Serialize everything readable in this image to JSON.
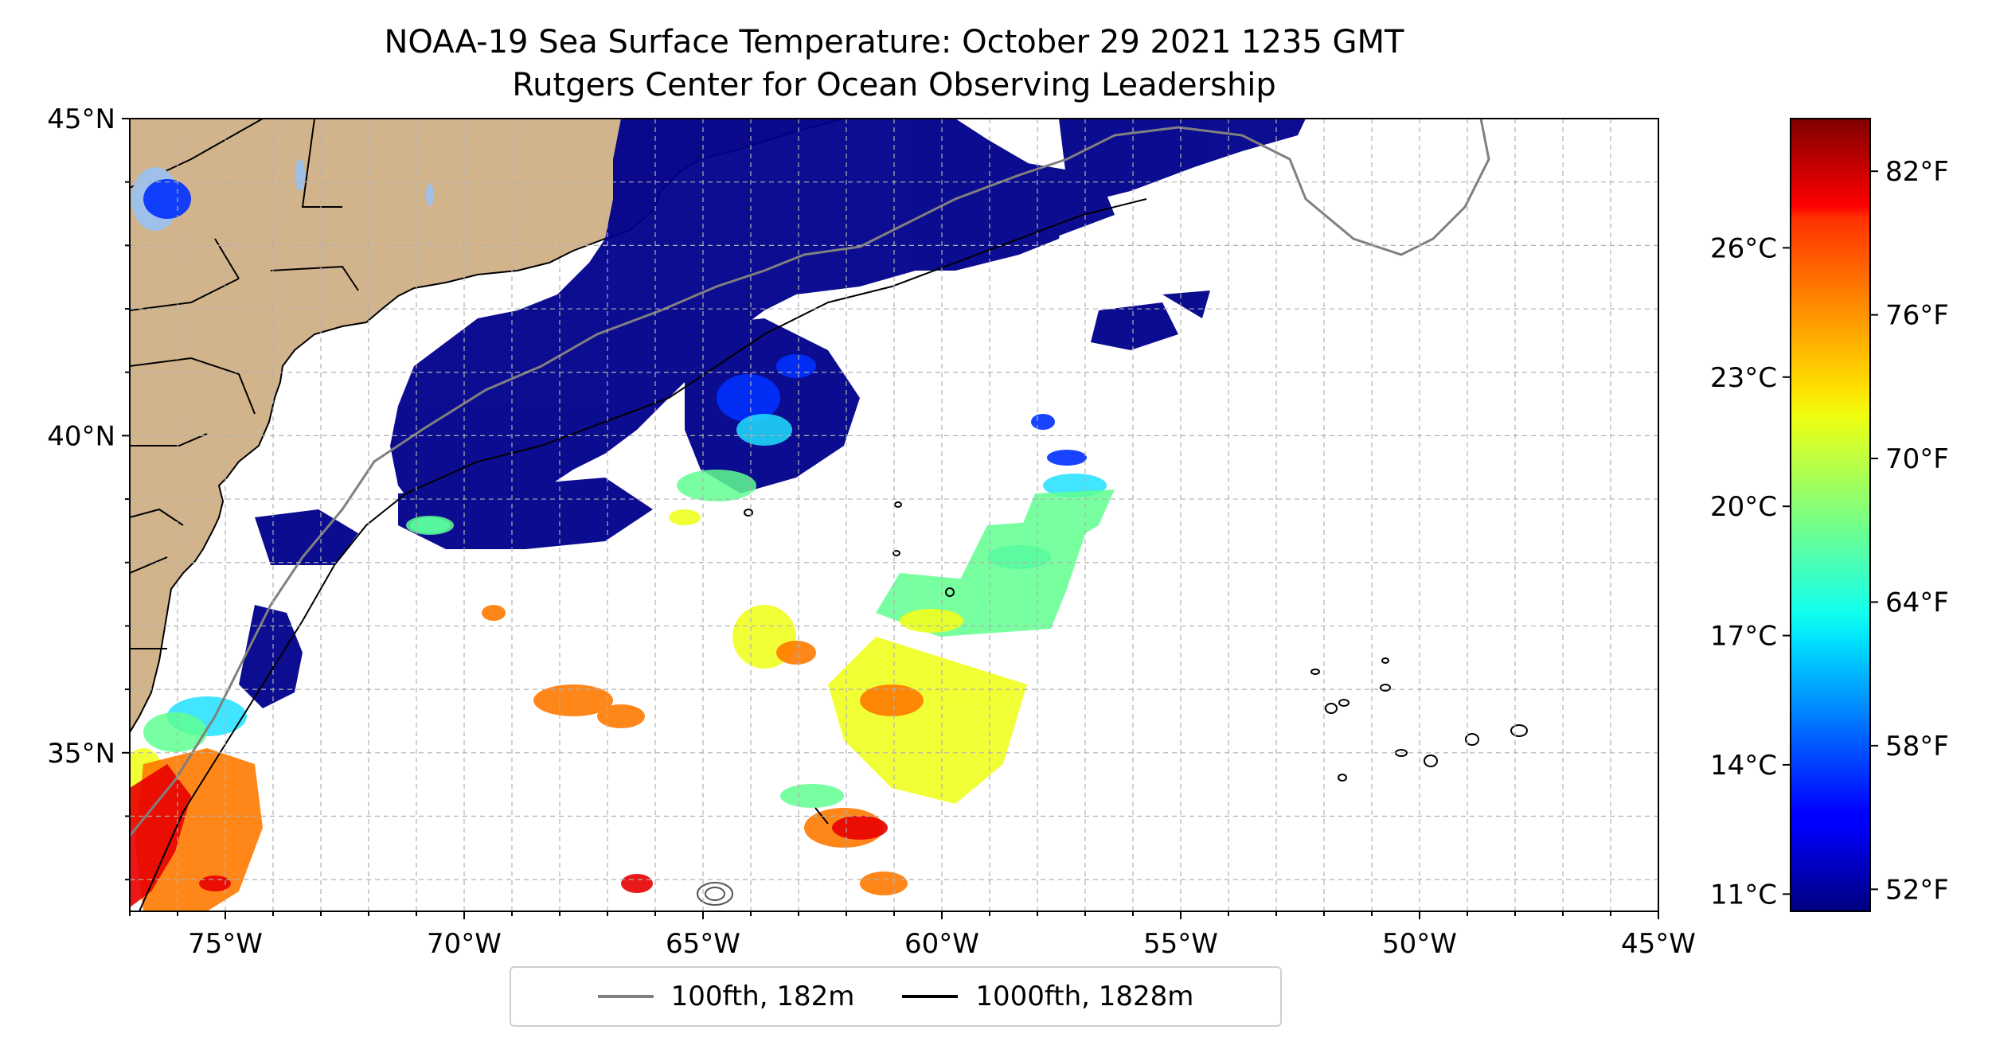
{
  "title": "NOAA-19 Sea Surface Temperature: October 29 2021 1235 GMT",
  "subtitle": "Rutgers Center for Ocean Observing Leadership",
  "map": {
    "lon_range": [
      -77,
      -45
    ],
    "lat_range": [
      32.5,
      45
    ],
    "lon_ticks": [
      "75°W",
      "70°W",
      "65°W",
      "60°W",
      "55°W",
      "50°W",
      "45°W"
    ],
    "lat_ticks": [
      "35°N",
      "40°N",
      "45°N"
    ],
    "gridlines": "dashed, 1° spacing",
    "land_color": "#d2b48c",
    "missing_data_color": "#ffffff"
  },
  "colorbar": {
    "colormap": "jet",
    "celsius_ticks": [
      "11°C",
      "14°C",
      "17°C",
      "20°C",
      "23°C",
      "26°C"
    ],
    "fahrenheit_ticks": [
      "52°F",
      "58°F",
      "64°F",
      "70°F",
      "76°F",
      "82°F"
    ]
  },
  "legend": {
    "entries": [
      {
        "label": "100fth, 182m",
        "color": "#808080"
      },
      {
        "label": "1000fth, 1828m",
        "color": "#000000"
      }
    ]
  }
}
